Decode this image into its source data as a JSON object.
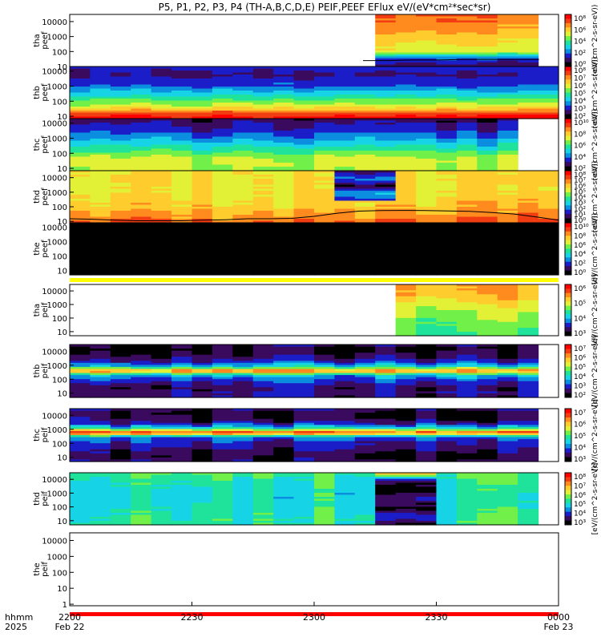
{
  "title": "P5, P1, P2, P3, P4 (TH-A,B,C,D,E) PEIF,PEEF EFlux eV/(eV*cm²*sec*sr)",
  "x_axis": {
    "row_labels": [
      "hhmm",
      "2025"
    ],
    "ticks": [
      {
        "label": "2200",
        "sub": "Feb 22"
      },
      {
        "label": "2230",
        "sub": ""
      },
      {
        "label": "2300",
        "sub": ""
      },
      {
        "label": "2330",
        "sub": ""
      },
      {
        "label": "0000",
        "sub": "Feb 23"
      }
    ]
  },
  "colorbar_units": {
    "eflux_ev": "(eV/(cm^2-s-sr-eV))",
    "eflux_full": "[eV/(cm^2-s-sr-eV)]"
  },
  "palette": [
    "#ffffff",
    "#000000",
    "#3a0a5e",
    "#1b1ec8",
    "#0b8de0",
    "#17d3e6",
    "#1fe39b",
    "#72f04a",
    "#e2f036",
    "#ffcc2e",
    "#ff8b1e",
    "#f23c12",
    "#ff0000"
  ],
  "chart_data": {
    "type": "heatmap",
    "x_range": [
      "2025-02-22 22:00",
      "2025-02-23 00:00"
    ],
    "y_scale": "log",
    "panels": [
      {
        "ylabel": [
          "tha",
          "peef"
        ],
        "yticks": [
          "10000",
          "1000",
          "100",
          "10"
        ],
        "ylim": [
          10,
          30000
        ],
        "cb_ticks": [
          "10⁸",
          "10⁶",
          "10⁴",
          "10²",
          "10⁰"
        ],
        "cb_label": "(eV/(cm^2-s-sr-eV))",
        "start": 0.6,
        "end": 0.96,
        "profile": [
          1.6,
          3.2,
          7.8,
          8.3,
          9.0,
          9.6,
          10.1,
          10.4
        ],
        "vary": 0.5,
        "line": [
          25,
          25,
          27,
          27,
          30,
          30,
          30,
          30
        ]
      },
      {
        "ylabel": [
          "thb",
          "peef"
        ],
        "yticks": [
          "10000",
          "1000",
          "100",
          "10"
        ],
        "ylim": [
          7,
          20000
        ],
        "cb_ticks": [
          "10⁸",
          "10⁷",
          "10⁶",
          "10⁵",
          "10⁴",
          "10³",
          "10²"
        ],
        "cb_label": "(eV/(cm^2-s-sr-eV))",
        "start": 0,
        "end": 1,
        "profile": [
          12,
          11,
          8.8,
          7.5,
          6.5,
          5.2,
          4.3,
          3.2,
          3.0,
          2.2,
          2.5,
          3.1
        ],
        "vary": 0.4
      },
      {
        "ylabel": [
          "thc",
          "peef"
        ],
        "yticks": [
          "10000",
          "1000",
          "100",
          "10"
        ],
        "ylim": [
          7,
          20000
        ],
        "cb_ticks": [
          "10¹⁰",
          "10⁸",
          "10⁶",
          "10⁴",
          "10²"
        ],
        "cb_label": "(eV/(cm^2-s-sr-eV))",
        "start": 0,
        "end": 0.945,
        "profile": [
          7.2,
          7.5,
          7.8,
          7.2,
          6.3,
          5.4,
          4.6,
          3.8,
          3.2,
          2.6,
          2.2,
          1.6
        ],
        "vary": 0.6
      },
      {
        "ylabel": [
          "thd",
          "peef"
        ],
        "yticks": [
          "10000",
          "1000",
          "100",
          "10"
        ],
        "ylim": [
          8,
          30000
        ],
        "cb_ticks": [
          "10⁸",
          "10⁷",
          "10⁶",
          "10⁵",
          "10⁴",
          "10³",
          "10²",
          "10¹",
          "10⁰"
        ],
        "cb_label": "(eV/(cm^2-s-sr-eV))",
        "start": 0,
        "end": 1,
        "profile": [
          10.6,
          9.8,
          9.0,
          8.7,
          8.5,
          8.6,
          8.6
        ],
        "vary": 0.7,
        "anomaly": {
          "from": 0.53,
          "to": 0.65,
          "top_frac": 0.42,
          "profile": [
            3.0,
            4.5,
            1.5,
            4.0,
            1.2
          ]
        },
        "line": [
          15,
          14,
          12,
          11,
          11,
          11,
          12,
          13,
          15,
          15,
          16,
          22,
          35,
          50,
          55,
          56,
          55,
          52,
          48,
          40,
          32,
          20,
          12
        ]
      },
      {
        "ylabel": [
          "the",
          "peef"
        ],
        "yticks": [
          "10000",
          "1000",
          "100",
          "10"
        ],
        "ylim": [
          5,
          20000
        ],
        "cb_ticks": [
          "10¹⁰",
          "10⁸",
          "10⁶",
          "10⁴",
          "10²",
          "10⁰"
        ],
        "cb_label": "(eV/(cm^2-s-sr-eV))",
        "start": 0,
        "end": 1,
        "solid": 1,
        "stripe": 8
      },
      {
        "ylabel": [
          "tha",
          "peif"
        ],
        "yticks": [
          "10000",
          "1000",
          "100",
          "10"
        ],
        "ylim": [
          5,
          30000
        ],
        "cb_ticks": [
          "10⁶",
          "10⁵",
          "10⁴",
          "10³"
        ],
        "cb_label": "[eV/(cm^2-s-sr-eV)]",
        "start": 0.635,
        "end": 0.96,
        "profile": [
          6.4,
          6.8,
          7.2,
          7.8,
          8.6,
          9.3,
          9.8
        ],
        "vary": 0.6
      },
      {
        "ylabel": [
          "thb",
          "peif"
        ],
        "yticks": [
          "10000",
          "1000",
          "100",
          "10"
        ],
        "ylim": [
          5,
          30000
        ],
        "cb_ticks": [
          "10⁷",
          "10⁶",
          "10⁵",
          "10⁴",
          "10³",
          "10²"
        ],
        "cb_label": "[eV/(cm^2-s-sr-eV)]",
        "start": 0,
        "end": 0.985,
        "profile": [
          2.0,
          2.5,
          2.0,
          2.6,
          3.4,
          4.6,
          10.5,
          5.2,
          3.0,
          2.2,
          1.6,
          1.2,
          2.0
        ],
        "vary": 0.8
      },
      {
        "ylabel": [
          "thc",
          "peif"
        ],
        "yticks": [
          "10000",
          "1000",
          "100",
          "10"
        ],
        "ylim": [
          5,
          30000
        ],
        "cb_ticks": [
          "10⁷",
          "10⁶",
          "10⁵",
          "10⁴",
          "10³"
        ],
        "cb_label": "[eV/(cm^2-s-sr-eV)]",
        "start": 0,
        "end": 0.99,
        "profile": [
          2.0,
          1.4,
          1.8,
          2.4,
          2.8,
          3.4,
          11.0,
          5.0,
          2.4,
          1.6,
          1.2,
          2.2
        ],
        "vary": 0.8
      },
      {
        "ylabel": [
          "thd",
          "peif"
        ],
        "yticks": [
          "10000",
          "1000",
          "100",
          "10"
        ],
        "ylim": [
          5,
          30000
        ],
        "cb_ticks": [
          "10⁸",
          "10⁷",
          "10⁶",
          "10⁵",
          "10⁴",
          "10³"
        ],
        "cb_label": "[eV/(cm^2-s-sr-eV)]",
        "start": 0,
        "end": 0.975,
        "profile": [
          6.3,
          6.1,
          5.7,
          5.5,
          5.6,
          6.0,
          6.6
        ],
        "vary": 0.9,
        "anomaly": {
          "from": 0.62,
          "to": 0.72,
          "top_frac": 0.0,
          "profile": [
            1.6,
            3.2,
            1.2,
            2.6,
            1.0,
            1.4,
            10.0
          ]
        }
      },
      {
        "ylabel": [
          "the",
          "peif"
        ],
        "yticks": [
          "10000",
          "1000",
          "100",
          "10",
          "1"
        ],
        "ylim": [
          0.8,
          30000
        ],
        "cb_ticks": [],
        "cb_label": "",
        "start": 0,
        "end": 0,
        "stripe": 12
      }
    ]
  }
}
